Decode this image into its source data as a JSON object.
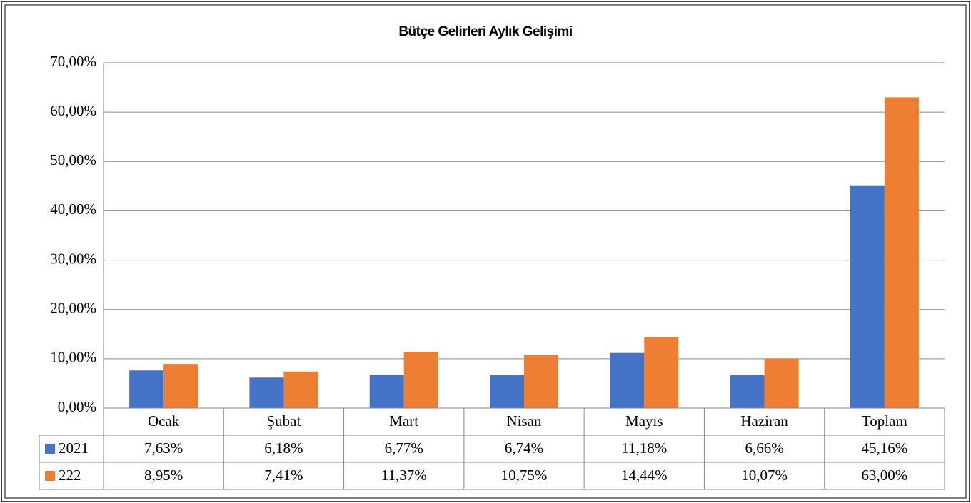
{
  "chart_data": {
    "type": "bar",
    "title": "Bütçe Gelirleri Aylık Gelişimi",
    "categories": [
      "Ocak",
      "Şubat",
      "Mart",
      "Nisan",
      "Mayıs",
      "Haziran",
      "Toplam"
    ],
    "series": [
      {
        "name": "2021",
        "color": "#4472c4",
        "values": [
          7.63,
          6.18,
          6.77,
          6.74,
          11.18,
          6.66,
          45.16
        ],
        "value_labels": [
          "7,63%",
          "6,18%",
          "6,77%",
          "6,74%",
          "11,18%",
          "6,66%",
          "45,16%"
        ]
      },
      {
        "name": "222",
        "color": "#ed7d31",
        "values": [
          8.95,
          7.41,
          11.37,
          10.75,
          14.44,
          10.07,
          63.0
        ],
        "value_labels": [
          "8,95%",
          "7,41%",
          "11,37%",
          "10,75%",
          "14,44%",
          "10,07%",
          "63,00%"
        ]
      }
    ],
    "ylim": [
      0,
      70
    ],
    "yticks": [
      {
        "value": 0,
        "label": "0,00%"
      },
      {
        "value": 10,
        "label": "10,00%"
      },
      {
        "value": 20,
        "label": "20,00%"
      },
      {
        "value": 30,
        "label": "30,00%"
      },
      {
        "value": 40,
        "label": "40,00%"
      },
      {
        "value": 50,
        "label": "50,00%"
      },
      {
        "value": 60,
        "label": "60,00%"
      },
      {
        "value": 70,
        "label": "70,00%"
      }
    ],
    "grid": true
  }
}
